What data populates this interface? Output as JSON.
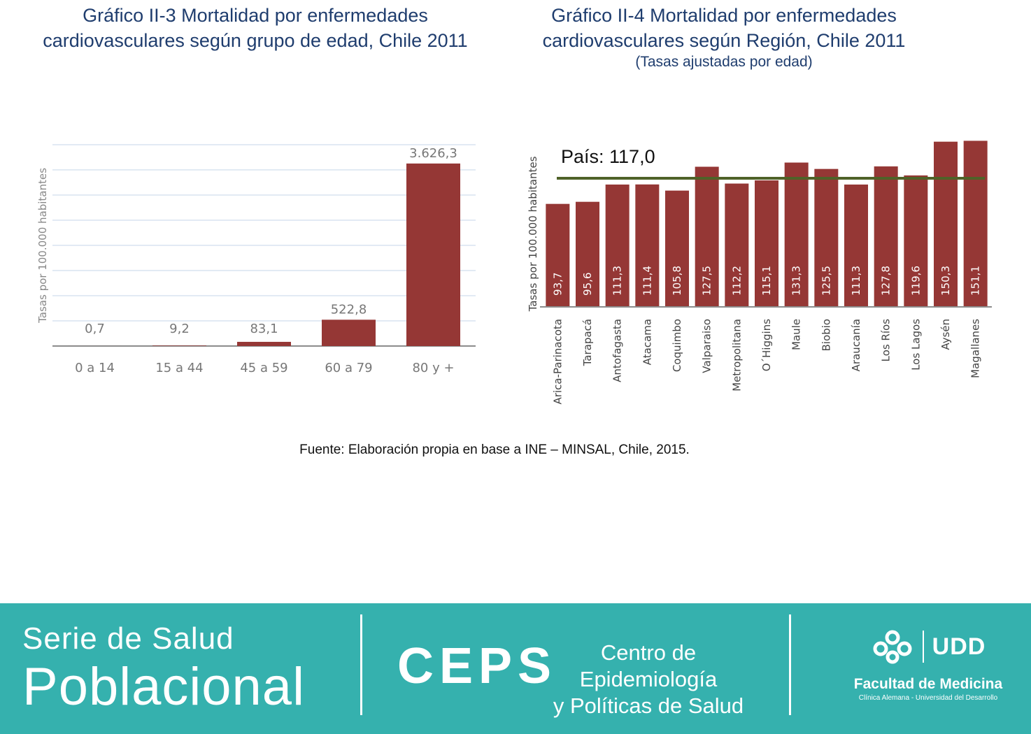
{
  "charts_header": {
    "left_title_line1": "Gráfico II-3 Mortalidad por enfermedades",
    "left_title_line2": "cardiovasculares según grupo de edad, Chile 2011",
    "right_title_line1": "Gráfico II-4 Mortalidad por enfermedades",
    "right_title_line2": "cardiovasculares según Región, Chile 2011",
    "right_subtitle": "(Tasas ajustadas por edad)"
  },
  "chart_data": [
    {
      "type": "bar",
      "title": "Gráfico II-3 Mortalidad por enfermedades cardiovasculares según grupo de edad, Chile 2011",
      "ylabel": "Tasas por 100.000 habitantes",
      "categories": [
        "0 a 14",
        "15 a 44",
        "45 a 59",
        "60 a 79",
        "80 y +"
      ],
      "values": [
        0.7,
        9.2,
        83.1,
        522.8,
        3626.3
      ],
      "value_labels": [
        "0,7",
        "9,2",
        "83,1",
        "522,8",
        "3.626,3"
      ],
      "ylim": [
        0,
        4000
      ],
      "grid": true,
      "bar_color": "#953735"
    },
    {
      "type": "bar",
      "title": "Gráfico II-4 Mortalidad por enfermedades cardiovasculares según Región, Chile 2011",
      "subtitle": "(Tasas ajustadas por edad)",
      "ylabel": "Tasas por 100.000 habitantes",
      "categories": [
        "Arica-Parinacota",
        "Tarapacá",
        "Antofagasta",
        "Atacama",
        "Coquimbo",
        "Valparaiso",
        "Metropolitana",
        "O´Higgins",
        "Maule",
        "Biobio",
        "Araucanía",
        "Los Ríos",
        "Los Lagos",
        "Aysén",
        "Magallanes"
      ],
      "values": [
        93.7,
        95.6,
        111.3,
        111.4,
        105.8,
        127.5,
        112.2,
        115.1,
        131.3,
        125.5,
        111.3,
        127.8,
        119.6,
        150.3,
        151.1
      ],
      "value_labels": [
        "93,7",
        "95,6",
        "111,3",
        "111,4",
        "105,8",
        "127,5",
        "112,2",
        "115,1",
        "131,3",
        "125,5",
        "111,3",
        "127,8",
        "119,6",
        "150,3",
        "151,1"
      ],
      "reference_line": {
        "label": "País: 117,0",
        "value": 117.0,
        "color": "#4f6228"
      },
      "ylim": [
        0,
        152
      ],
      "grid": false,
      "bar_color": "#953735"
    }
  ],
  "source": "Fuente: Elaboración propia en base a INE – MINSAL, Chile, 2015.",
  "footer": {
    "series_line1": "Serie de Salud",
    "series_line2": "Poblacional",
    "ceps": "CEPS",
    "ceps_desc_line1": "Centro de Epidemiología",
    "ceps_desc_line2": "y Políticas de Salud",
    "udd": "UDD",
    "faculty": "Facultad de Medicina",
    "faculty_sub": "Clínica Alemana - Universidad del Desarrollo",
    "bg_color": "#35b1ae"
  }
}
